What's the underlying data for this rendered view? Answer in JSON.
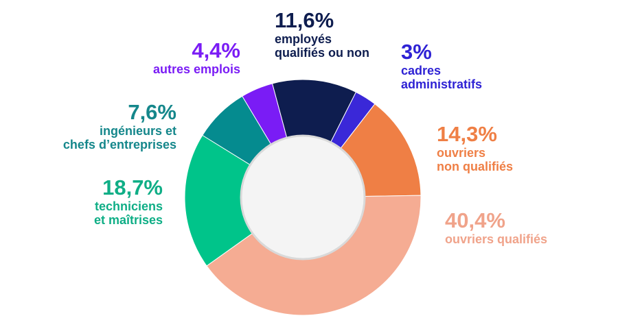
{
  "chart_data": {
    "type": "pie",
    "variant": "donut",
    "title": "",
    "slices": [
      {
        "label": "employés\nqualifiés ou non",
        "value": 11.6,
        "display": "11,6%",
        "color": "#0e1d4f"
      },
      {
        "label": "cadres\nadministratifs",
        "value": 3,
        "display": "3%",
        "color": "#3a28d8"
      },
      {
        "label": "ouvriers\nnon qualifiés",
        "value": 14.3,
        "display": "14,3%",
        "color": "#ef7f45"
      },
      {
        "label": "ouvriers qualifiés",
        "value": 40.4,
        "display": "40,4%",
        "color": "#f5ac93"
      },
      {
        "label": "techniciens\net maîtrises",
        "value": 18.7,
        "display": "18,7%",
        "color": "#00c48a"
      },
      {
        "label": "ingénieurs et\nchefs d’entreprises",
        "value": 7.6,
        "display": "7,6%",
        "color": "#058b8f"
      },
      {
        "label": "autres emplois",
        "value": 4.4,
        "display": "4,4%",
        "color": "#7a1cf5"
      }
    ],
    "label_colors": [
      "#0e1d4f",
      "#2e22d4",
      "#ef7f45",
      "#f0a38a",
      "#0fae86",
      "#15878b",
      "#7a1cf5"
    ],
    "center_fill": "#f4f4f4",
    "center_ring": "#d9d9d9",
    "legend": "none"
  }
}
